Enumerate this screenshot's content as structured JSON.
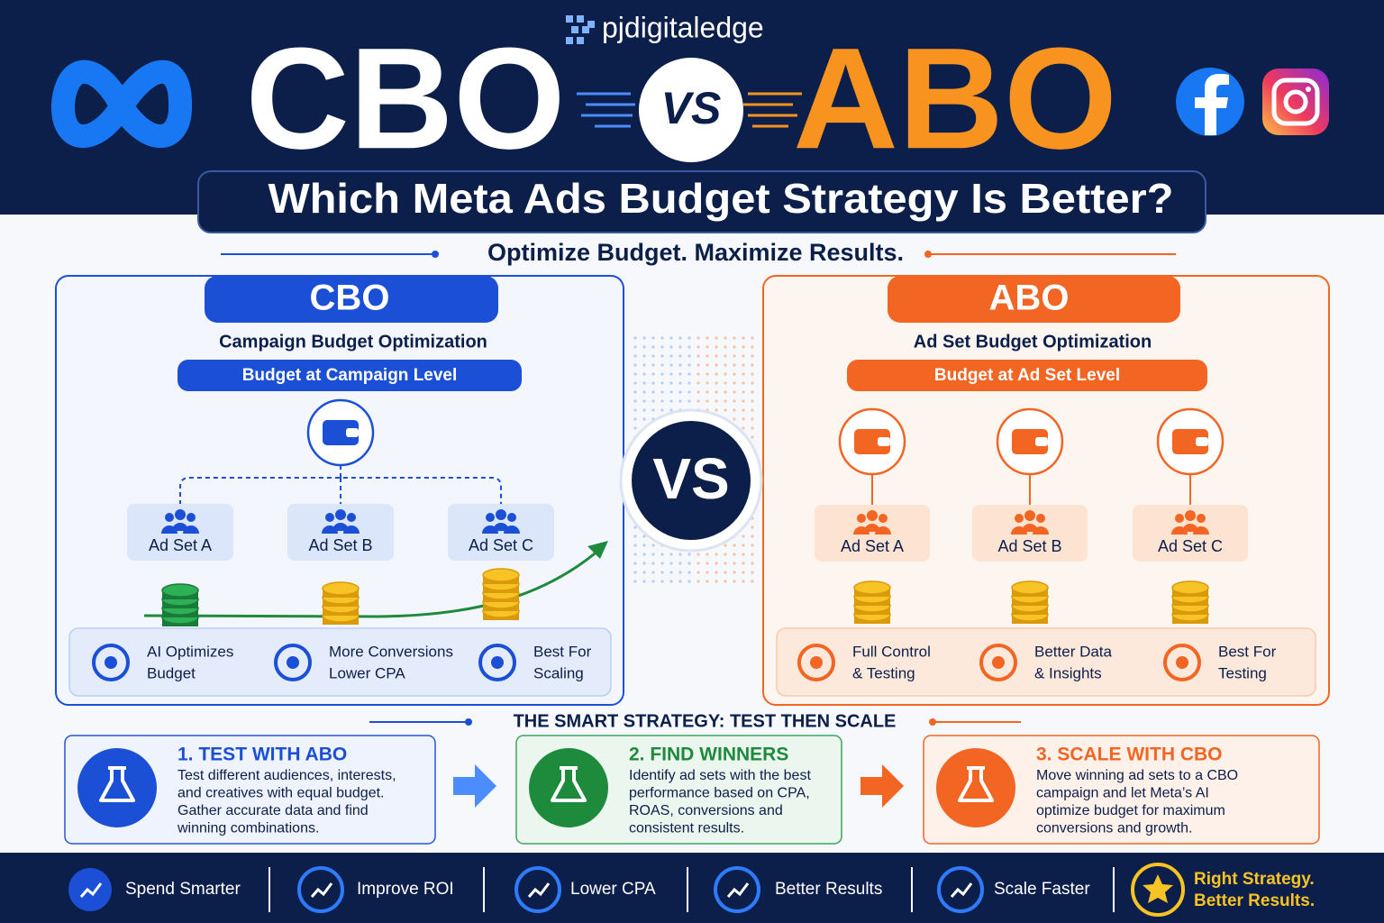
{
  "header": {
    "brand": "pjdigitaledge",
    "left_title": "CBO",
    "vs": "VS",
    "right_title": "ABO",
    "question": "Which Meta Ads Budget Strategy Is Better?",
    "tagline": "Optimize Budget. Maximize Results."
  },
  "cbo": {
    "title": "CBO",
    "subtitle": "Campaign Budget Optimization",
    "level": "Budget at Campaign Level",
    "ad_sets": [
      "Ad Set A",
      "Ad Set B",
      "Ad Set C"
    ],
    "features": [
      [
        "AI Optimizes",
        "Budget"
      ],
      [
        "More Conversions",
        "Lower CPA"
      ],
      [
        "Best For",
        "Scaling"
      ]
    ]
  },
  "center": {
    "vs": "VS"
  },
  "abo": {
    "title": "ABO",
    "subtitle": "Ad Set Budget Optimization",
    "level": "Budget at Ad Set Level",
    "ad_sets": [
      "Ad Set A",
      "Ad Set B",
      "Ad Set C"
    ],
    "features": [
      [
        "Full Control",
        "& Testing"
      ],
      [
        "Better Data",
        "& Insights"
      ],
      [
        "Best For",
        "Testing"
      ]
    ]
  },
  "strategy": {
    "title": "THE SMART STRATEGY: TEST THEN SCALE",
    "steps": [
      {
        "title": "1. TEST WITH ABO",
        "lines": [
          "Test different audiences, interests,",
          "and creatives with equal budget.",
          "Gather accurate data and find",
          "winning combinations."
        ]
      },
      {
        "title": "2. FIND WINNERS",
        "lines": [
          "Identify ad sets with the best",
          "performance based on CPA,",
          "ROAS, conversions and",
          "consistent results."
        ]
      },
      {
        "title": "3. SCALE WITH CBO",
        "lines": [
          "Move winning ad sets to a CBO",
          "campaign and let Meta’s AI",
          "optimize budget for maximum",
          "conversions and growth."
        ]
      }
    ]
  },
  "footer": {
    "items": [
      "Spend Smarter",
      "Improve ROI",
      "Lower CPA",
      "Better Results",
      "Scale Faster"
    ],
    "closing": [
      "Right Strategy.",
      "Better Results."
    ]
  }
}
